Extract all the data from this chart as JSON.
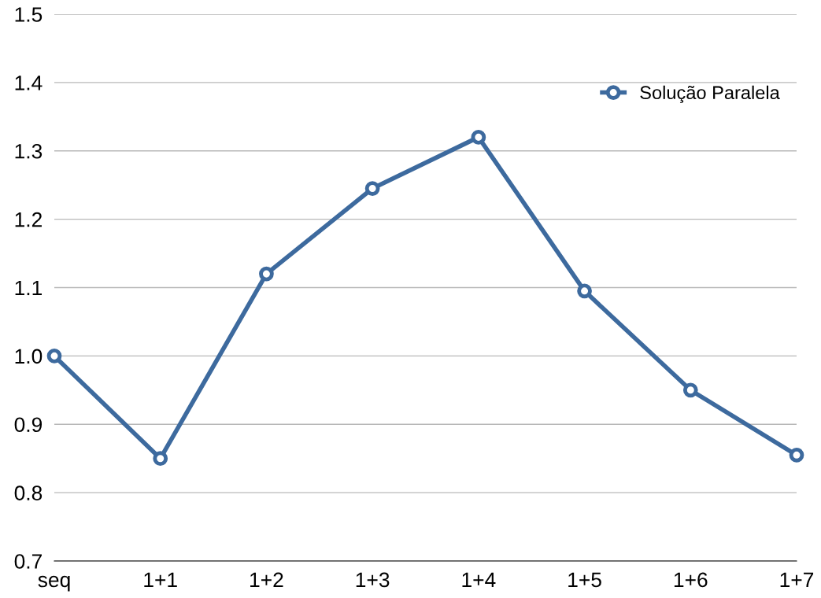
{
  "chart_data": {
    "type": "line",
    "categories": [
      "seq",
      "1+1",
      "1+2",
      "1+3",
      "1+4",
      "1+5",
      "1+6",
      "1+7"
    ],
    "series": [
      {
        "name": "Solução Paralela",
        "color": "#3d6a9e",
        "values": [
          1.0,
          0.85,
          1.12,
          1.245,
          1.32,
          1.095,
          0.95,
          0.855
        ]
      }
    ],
    "ylim": [
      0.7,
      1.5
    ],
    "yticks": [
      0.7,
      0.8,
      0.9,
      {
        "value": 1,
        "label": "1.0"
      },
      1.1,
      1.2,
      1.3,
      1.4,
      1.5
    ],
    "grid": "y",
    "legend": "top right",
    "marker": "circle",
    "line_style": "solid"
  }
}
